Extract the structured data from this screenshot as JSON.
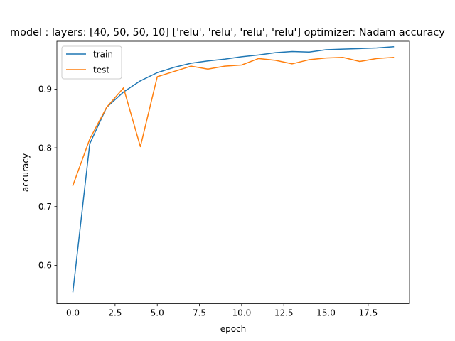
{
  "chart_data": {
    "type": "line",
    "title": "model : layers: [40, 50, 50, 10] ['relu', 'relu', 'relu', 'relu'] optimizer: Nadam accuracy",
    "xlabel": "epoch",
    "ylabel": "accuracy",
    "xlim": [
      -0.95,
      19.95
    ],
    "ylim": [
      0.5345,
      0.9815
    ],
    "x": [
      0,
      1,
      2,
      3,
      4,
      5,
      6,
      7,
      8,
      9,
      10,
      11,
      12,
      13,
      14,
      15,
      16,
      17,
      18,
      19
    ],
    "xticks": [
      "0.0",
      "2.5",
      "5.0",
      "7.5",
      "10.0",
      "12.5",
      "15.0",
      "17.5"
    ],
    "xtick_values": [
      0,
      2.5,
      5,
      7.5,
      10,
      12.5,
      15,
      17.5
    ],
    "yticks": [
      "0.6",
      "0.7",
      "0.8",
      "0.9"
    ],
    "ytick_values": [
      0.6,
      0.7,
      0.8,
      0.9
    ],
    "grid": false,
    "legend_position": "top-left",
    "series": [
      {
        "name": "train",
        "color": "#1f77b4",
        "values": [
          0.555,
          0.807,
          0.869,
          0.895,
          0.914,
          0.928,
          0.937,
          0.944,
          0.948,
          0.951,
          0.955,
          0.958,
          0.962,
          0.964,
          0.963,
          0.967,
          0.968,
          0.969,
          0.97,
          0.972
        ]
      },
      {
        "name": "test",
        "color": "#ff7f0e",
        "values": [
          0.736,
          0.815,
          0.869,
          0.902,
          0.802,
          0.921,
          0.93,
          0.939,
          0.934,
          0.939,
          0.941,
          0.952,
          0.949,
          0.943,
          0.95,
          0.953,
          0.954,
          0.947,
          0.952,
          0.954
        ]
      }
    ]
  }
}
